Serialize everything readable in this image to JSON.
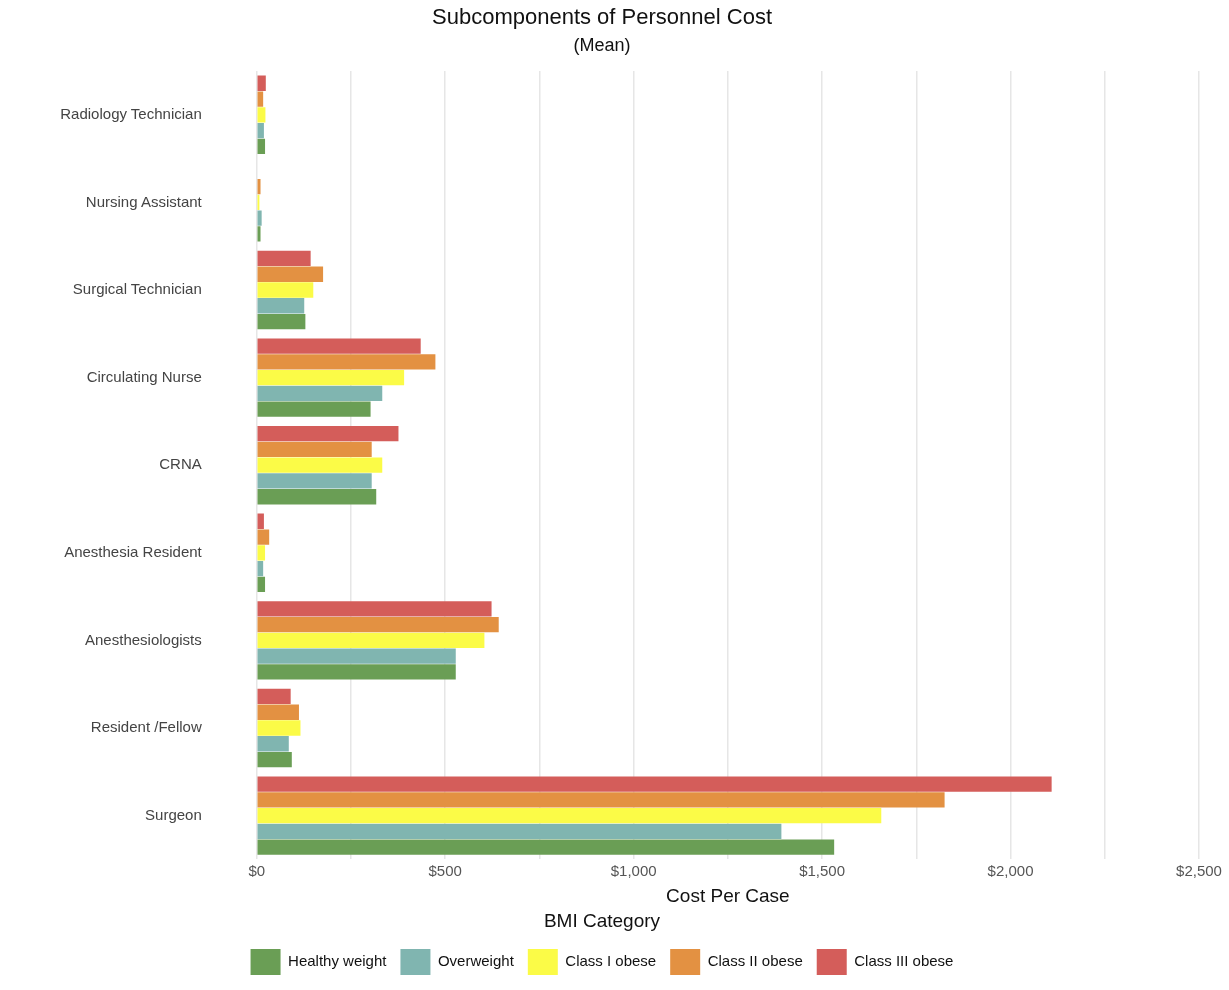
{
  "chart_data": {
    "type": "bar",
    "orientation": "horizontal",
    "title": "Subcomponents of Personnel Cost",
    "subtitle": "(Mean)",
    "xlabel": "Cost Per Case",
    "legend_title": "BMI Category",
    "categories": [
      "Radiology Technician",
      "Nursing Assistant",
      "Surgical Technician",
      "Circulating Nurse",
      "CRNA",
      "Anesthesia Resident",
      "Anesthesiologists",
      "Resident /Fellow",
      "Surgeon"
    ],
    "series": [
      {
        "name": "Healthy weight",
        "color": "#6a9e55",
        "values": [
          22,
          10,
          129,
          302,
          317,
          22,
          528,
          93,
          1532
        ]
      },
      {
        "name": "Overweight",
        "color": "#80b5b0",
        "values": [
          19,
          13,
          126,
          333,
          305,
          17,
          528,
          85,
          1392
        ]
      },
      {
        "name": "Class I obese",
        "color": "#fbfb47",
        "values": [
          23,
          7,
          150,
          391,
          333,
          22,
          604,
          116,
          1657
        ]
      },
      {
        "name": "Class II obese",
        "color": "#e39142",
        "values": [
          17,
          10,
          176,
          474,
          305,
          33,
          642,
          112,
          1825
        ]
      },
      {
        "name": "Class III obese",
        "color": "#d45d5a",
        "values": [
          24,
          0,
          143,
          435,
          376,
          19,
          623,
          90,
          2109
        ]
      }
    ],
    "xlim": [
      0,
      2500
    ],
    "xticks": [
      {
        "value": 0,
        "label": "$0"
      },
      {
        "value": 250,
        "label": null
      },
      {
        "value": 500,
        "label": "$500"
      },
      {
        "value": 750,
        "label": null
      },
      {
        "value": 1000,
        "label": "$1,000"
      },
      {
        "value": 1250,
        "label": null
      },
      {
        "value": 1500,
        "label": "$1,500"
      },
      {
        "value": 1750,
        "label": null
      },
      {
        "value": 2000,
        "label": "$2,000"
      },
      {
        "value": 2250,
        "label": null
      },
      {
        "value": 2500,
        "label": "$2,500"
      }
    ],
    "grid": "x",
    "legend": "bottom"
  }
}
